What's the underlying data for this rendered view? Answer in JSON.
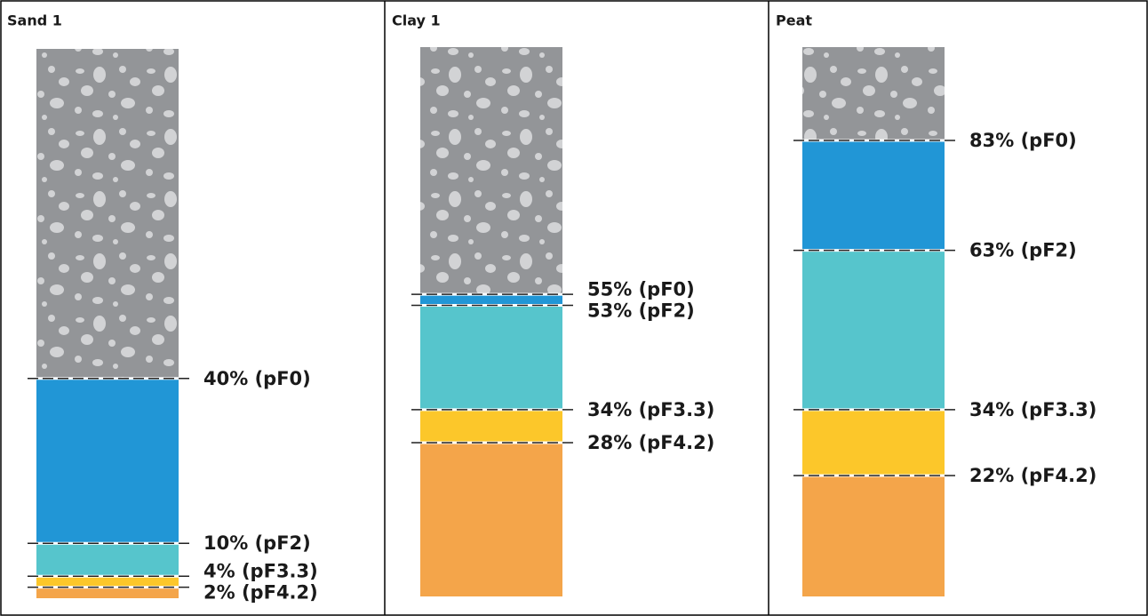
{
  "chart_data": [
    {
      "type": "soil-column",
      "title": "Sand 1",
      "ylim": [
        0,
        100
      ],
      "values": [
        40,
        10,
        4,
        2
      ],
      "value_labels": [
        "40% (pF0)",
        "10% (pF2)",
        "4% (pF3.3)",
        "2% (pF4.2)"
      ],
      "colors": [
        "#939598",
        "#2196d6",
        "#56c5cc",
        "#fcc72a",
        "#f4a54a"
      ]
    },
    {
      "type": "soil-column",
      "title": "Clay 1",
      "ylim": [
        0,
        100
      ],
      "values": [
        55,
        53,
        34,
        28
      ],
      "value_labels": [
        "55% (pF0)",
        "53% (pF2)",
        "34% (pF3.3)",
        "28% (pF4.2)"
      ],
      "colors": [
        "#939598",
        "#2196d6",
        "#56c5cc",
        "#fcc72a",
        "#f4a54a"
      ]
    },
    {
      "type": "soil-column",
      "title": "Peat",
      "ylim": [
        0,
        100
      ],
      "values": [
        83,
        63,
        34,
        22
      ],
      "value_labels": [
        "83% (pF0)",
        "63% (pF2)",
        "34% (pF3.3)",
        "22% (pF4.2)"
      ],
      "colors": [
        "#939598",
        "#2196d6",
        "#56c5cc",
        "#fcc72a",
        "#f4a54a"
      ]
    }
  ]
}
